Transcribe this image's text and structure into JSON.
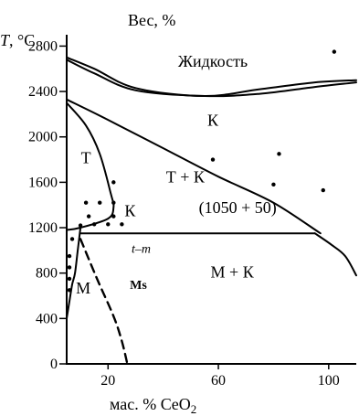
{
  "chart_data": {
    "type": "line",
    "title": "Вес, %",
    "ylabel_symbol": "T",
    "ylabel_unit": ", °C",
    "xlabel_prefix": "мас. % CeO",
    "xlabel_subscript": "2",
    "xlim": [
      5,
      110
    ],
    "ylim": [
      0,
      2900
    ],
    "x_ticks": [
      20,
      60,
      100
    ],
    "y_ticks": [
      0,
      400,
      800,
      1200,
      1600,
      2000,
      2400,
      2800
    ],
    "grid": false,
    "curves": [
      {
        "name": "liquidus_upper",
        "style": "solid",
        "points": [
          [
            5,
            2700
          ],
          [
            15,
            2600
          ],
          [
            30,
            2430
          ],
          [
            55,
            2360
          ],
          [
            75,
            2420
          ],
          [
            95,
            2480
          ],
          [
            110,
            2500
          ]
        ]
      },
      {
        "name": "liquidus_lower",
        "style": "solid",
        "points": [
          [
            5,
            2680
          ],
          [
            15,
            2560
          ],
          [
            30,
            2410
          ],
          [
            55,
            2360
          ],
          [
            75,
            2380
          ],
          [
            95,
            2440
          ],
          [
            110,
            2480
          ]
        ]
      },
      {
        "name": "t_k_upper_boundary",
        "style": "solid",
        "points": [
          [
            5,
            2330
          ],
          [
            20,
            2150
          ],
          [
            40,
            1900
          ],
          [
            60,
            1650
          ],
          [
            80,
            1420
          ],
          [
            97,
            1150
          ]
        ]
      },
      {
        "name": "t_region_boundary",
        "style": "solid",
        "points": [
          [
            5,
            2300
          ],
          [
            12,
            2100
          ],
          [
            17,
            1850
          ],
          [
            21,
            1500
          ],
          [
            22,
            1380
          ],
          [
            20,
            1280
          ],
          [
            10,
            1200
          ],
          [
            5,
            1180
          ]
        ]
      },
      {
        "name": "eutectoid_line",
        "style": "solid",
        "points": [
          [
            10,
            1150
          ],
          [
            95,
            1150
          ]
        ]
      },
      {
        "name": "m_k_boundary",
        "style": "solid",
        "points": [
          [
            95,
            1150
          ],
          [
            101,
            1050
          ],
          [
            106,
            950
          ],
          [
            110,
            780
          ]
        ]
      },
      {
        "name": "m_boundary",
        "style": "solid",
        "points": [
          [
            10,
            1200
          ],
          [
            9,
            1000
          ],
          [
            8,
            800
          ],
          [
            7,
            700
          ],
          [
            6,
            550
          ],
          [
            5,
            400
          ]
        ]
      },
      {
        "name": "martensite_start_Ms",
        "style": "dashed",
        "points": [
          [
            10,
            1100
          ],
          [
            16,
            750
          ],
          [
            22,
            420
          ],
          [
            25,
            200
          ],
          [
            27,
            0
          ]
        ]
      }
    ],
    "data_markers": [
      [
        22,
        1600
      ],
      [
        12,
        1420
      ],
      [
        17,
        1420
      ],
      [
        22,
        1420
      ],
      [
        13,
        1300
      ],
      [
        22,
        1300
      ],
      [
        10,
        1220
      ],
      [
        15,
        1230
      ],
      [
        20,
        1230
      ],
      [
        25,
        1230
      ],
      [
        7,
        1100
      ],
      [
        6,
        950
      ],
      [
        6,
        850
      ],
      [
        6,
        750
      ],
      [
        6,
        650
      ],
      [
        102,
        2750
      ],
      [
        58,
        1800
      ],
      [
        80,
        1580
      ],
      [
        82,
        1850
      ],
      [
        98,
        1530
      ]
    ],
    "region_labels": [
      {
        "text": "Жидкость",
        "x": 58,
        "y": 2620
      },
      {
        "text": "К",
        "x": 58,
        "y": 2100
      },
      {
        "text": "Т",
        "x": 12,
        "y": 1770
      },
      {
        "text": "Т + К",
        "x": 48,
        "y": 1600
      },
      {
        "text": "К",
        "x": 28,
        "y": 1300
      },
      {
        "text": "(1050 + 50)",
        "x": 67,
        "y": 1330
      },
      {
        "text": "t–m",
        "x": 32,
        "y": 980
      },
      {
        "text": "Ms",
        "x": 31,
        "y": 660
      },
      {
        "text": "М",
        "x": 11,
        "y": 620
      },
      {
        "text": "М + К",
        "x": 65,
        "y": 760
      }
    ]
  }
}
